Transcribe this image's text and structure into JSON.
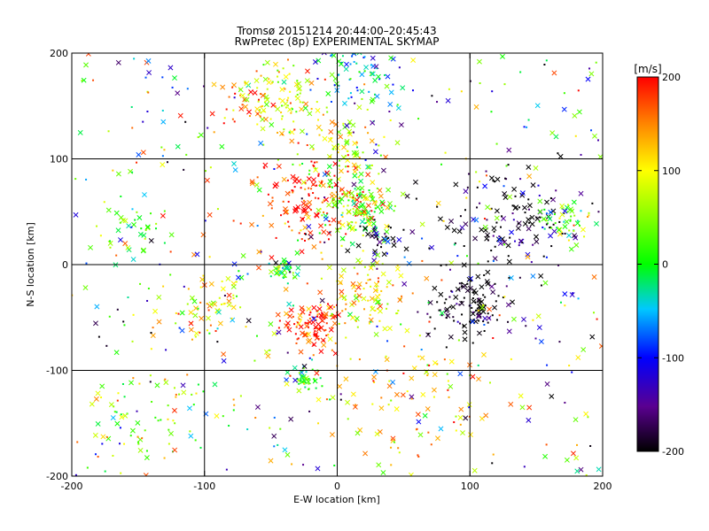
{
  "chart_data": {
    "type": "scatter",
    "title": "Tromsø 20151214 20:44:00–20:45:43",
    "subtitle": "RwPretec (8p) EXPERIMENTAL SKYMAP",
    "xlabel": "E-W location [km]",
    "ylabel": "N-S location [km]",
    "xlim": [
      -200,
      200
    ],
    "ylim": [
      -200,
      200
    ],
    "xticks": [
      "-200",
      "-100",
      "0",
      "100",
      "200"
    ],
    "yticks": [
      "-200",
      "-100",
      "0",
      "100",
      "200"
    ],
    "grid": true,
    "marker_types": [
      "x",
      "dot"
    ],
    "colorbar": {
      "unit": "[m/s]",
      "range": [
        -200,
        200
      ],
      "ticks": [
        "200",
        "100",
        "0",
        "-100",
        "-200"
      ],
      "colormap": "rainbow: black-purple-blue-cyan-green-yellow-red"
    },
    "clusters": [
      {
        "x": 10,
        "y": 185,
        "spread": 30,
        "count": 90,
        "v": -40
      },
      {
        "x": -40,
        "y": 160,
        "spread": 25,
        "count": 80,
        "v": 80
      },
      {
        "x": -70,
        "y": 150,
        "spread": 20,
        "count": 40,
        "v": 150
      },
      {
        "x": 0,
        "y": 110,
        "spread": 30,
        "count": 80,
        "v": 70
      },
      {
        "x": -20,
        "y": 60,
        "spread": 35,
        "count": 160,
        "v": 190
      },
      {
        "x": 15,
        "y": 55,
        "spread": 25,
        "count": 130,
        "v": 40
      },
      {
        "x": 30,
        "y": 25,
        "spread": 15,
        "count": 40,
        "v": -200
      },
      {
        "x": -40,
        "y": -5,
        "spread": 8,
        "count": 40,
        "v": 20
      },
      {
        "x": 20,
        "y": -25,
        "spread": 25,
        "count": 90,
        "v": 110
      },
      {
        "x": -20,
        "y": -55,
        "spread": 18,
        "count": 110,
        "v": 185
      },
      {
        "x": -25,
        "y": -110,
        "spread": 10,
        "count": 40,
        "v": 20
      },
      {
        "x": 100,
        "y": -40,
        "spread": 25,
        "count": 120,
        "v": -200
      },
      {
        "x": 130,
        "y": 40,
        "spread": 45,
        "count": 140,
        "v": -200
      },
      {
        "x": 170,
        "y": 40,
        "spread": 20,
        "count": 50,
        "v": 30
      },
      {
        "x": -100,
        "y": -40,
        "spread": 25,
        "count": 60,
        "v": 100
      },
      {
        "x": -150,
        "y": 30,
        "spread": 20,
        "count": 30,
        "v": 20
      },
      {
        "x": -140,
        "y": -140,
        "spread": 45,
        "count": 60,
        "v": 50
      },
      {
        "x": 60,
        "y": -120,
        "spread": 55,
        "count": 90,
        "v": 140
      },
      {
        "x": 0,
        "y": 0,
        "spread": 200,
        "count": 500,
        "v": 0
      }
    ]
  }
}
